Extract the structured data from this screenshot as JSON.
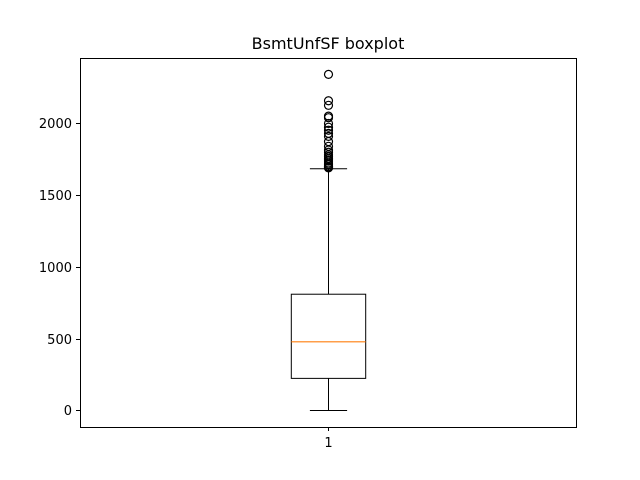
{
  "chart_data": {
    "type": "boxplot",
    "title": "BsmtUnfSF boxplot",
    "xlabel": "",
    "ylabel": "",
    "categories": [
      "1"
    ],
    "ylim": [
      -115,
      2450
    ],
    "yticks": [
      0,
      500,
      1000,
      1500,
      2000
    ],
    "grid": false,
    "median_color": "#ff7f0e",
    "series": [
      {
        "whisker_low": 0,
        "q1": 223,
        "median": 477,
        "q3": 808,
        "whisker_high": 1680,
        "fliers": [
          1686,
          1689,
          1694,
          1698,
          1710,
          1720,
          1734,
          1742,
          1753,
          1766,
          1777,
          1795,
          1810,
          1836,
          1869,
          1905,
          1926,
          1948,
          1969,
          1995,
          2035,
          2046,
          2121,
          2153,
          2336
        ]
      }
    ]
  }
}
